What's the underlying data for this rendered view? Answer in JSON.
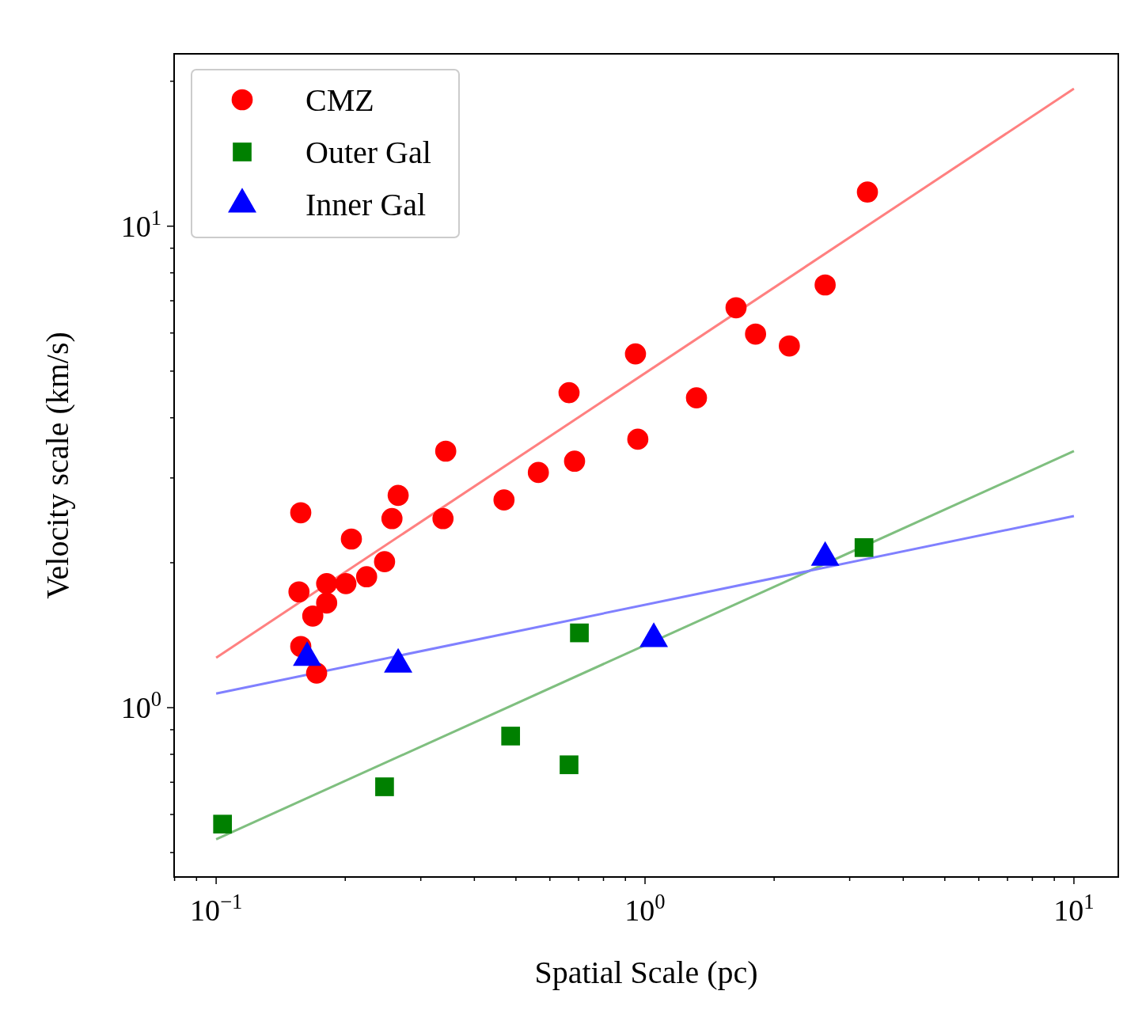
{
  "chart_data": {
    "type": "scatter",
    "xlabel": "Spatial Scale (pc)",
    "ylabel": "Velocity scale (km/s)",
    "log": "xy",
    "legend": "top left",
    "grid": false,
    "xlim": [
      0.0798,
      12.69
    ],
    "ylim": [
      0.445,
      22.8
    ],
    "xticks": [
      {
        "value": 0.08,
        "label": null
      },
      {
        "value": 0.09,
        "label": null
      },
      {
        "value": 0.1,
        "label": "10$^{−1}$"
      },
      {
        "value": 0.2,
        "label": null
      },
      {
        "value": 0.3,
        "label": null
      },
      {
        "value": 0.4,
        "label": null
      },
      {
        "value": 0.5,
        "label": null
      },
      {
        "value": 0.6,
        "label": null
      },
      {
        "value": 0.7,
        "label": null
      },
      {
        "value": 0.8,
        "label": null
      },
      {
        "value": 0.9,
        "label": null
      },
      {
        "value": 1,
        "label": "10$^{0}$"
      },
      {
        "value": 2,
        "label": null
      },
      {
        "value": 3,
        "label": null
      },
      {
        "value": 4,
        "label": null
      },
      {
        "value": 5,
        "label": null
      },
      {
        "value": 6,
        "label": null
      },
      {
        "value": 7,
        "label": null
      },
      {
        "value": 8,
        "label": null
      },
      {
        "value": 9,
        "label": null
      },
      {
        "value": 10,
        "label": "10$^{1}$"
      }
    ],
    "yticks": [
      {
        "value": 0.5,
        "label": null
      },
      {
        "value": 0.6,
        "label": null
      },
      {
        "value": 0.7,
        "label": null
      },
      {
        "value": 0.8,
        "label": null
      },
      {
        "value": 0.9,
        "label": null
      },
      {
        "value": 1,
        "label": "10$^{0}$"
      },
      {
        "value": 2,
        "label": null
      },
      {
        "value": 3,
        "label": null
      },
      {
        "value": 4,
        "label": null
      },
      {
        "value": 5,
        "label": null
      },
      {
        "value": 6,
        "label": null
      },
      {
        "value": 7,
        "label": null
      },
      {
        "value": 8,
        "label": null
      },
      {
        "value": 9,
        "label": null
      },
      {
        "value": 10,
        "label": "10$^{1}$"
      },
      {
        "value": 20,
        "label": null
      }
    ],
    "series": [
      {
        "name": "CMZ",
        "marker": "circle",
        "color": "#ff0000",
        "x": [
          0.1575,
          0.156,
          0.1575,
          0.1715,
          0.168,
          0.181,
          0.181,
          0.2007,
          0.2067,
          0.2243,
          0.247,
          0.257,
          0.2657,
          0.338,
          0.343,
          0.469,
          0.564,
          0.665,
          0.685,
          0.95,
          0.962,
          1.318,
          1.63,
          1.81,
          2.17,
          2.63,
          3.3
        ],
        "values": [
          2.54,
          1.74,
          1.34,
          1.18,
          1.55,
          1.81,
          1.65,
          1.81,
          2.24,
          1.87,
          2.01,
          2.47,
          2.76,
          2.47,
          3.41,
          2.7,
          3.08,
          4.51,
          3.25,
          5.43,
          3.61,
          4.4,
          6.77,
          5.97,
          5.64,
          7.55,
          11.77
        ]
      },
      {
        "name": "Outer Gal",
        "marker": "square",
        "color": "#008000",
        "x": [
          0.1035,
          0.247,
          0.486,
          0.665,
          0.703,
          3.24
        ],
        "values": [
          0.573,
          0.685,
          0.873,
          0.761,
          1.43,
          2.15
        ]
      },
      {
        "name": "Inner Gal",
        "marker": "triangle",
        "color": "#0000ff",
        "x": [
          0.163,
          0.2657,
          1.048,
          2.63
        ],
        "values": [
          1.27,
          1.23,
          1.39,
          2.05
        ]
      },
      {
        "type": "line",
        "line_style": "solid",
        "color": "#ff8080",
        "x": [
          0.1,
          10
        ],
        "values": [
          1.27,
          19.3
        ]
      },
      {
        "type": "line",
        "line_style": "solid",
        "color": "#7fbf7f",
        "x": [
          0.1,
          10
        ],
        "values": [
          0.533,
          3.41
        ]
      },
      {
        "type": "line",
        "line_style": "solid",
        "color": "#8080ff",
        "x": [
          0.1,
          10
        ],
        "values": [
          1.07,
          2.5
        ]
      }
    ]
  }
}
